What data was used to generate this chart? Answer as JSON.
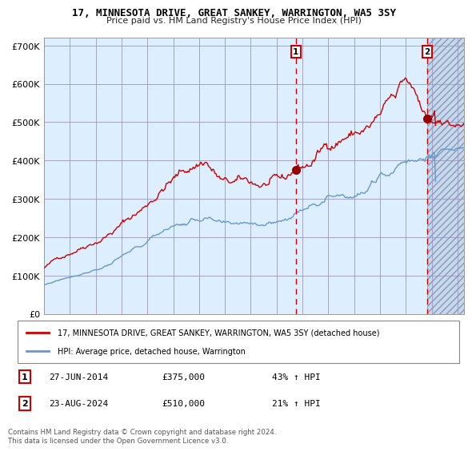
{
  "title": "17, MINNESOTA DRIVE, GREAT SANKEY, WARRINGTON, WA5 3SY",
  "subtitle": "Price paid vs. HM Land Registry's House Price Index (HPI)",
  "sale1_label": "27-JUN-2014",
  "sale1_price": 375000,
  "sale1_price_str": "£375,000",
  "sale1_hpi_pct": "43% ↑ HPI",
  "sale2_label": "23-AUG-2024",
  "sale2_price": 510000,
  "sale2_price_str": "£510,000",
  "sale2_hpi_pct": "21% ↑ HPI",
  "legend_line1": "17, MINNESOTA DRIVE, GREAT SANKEY, WARRINGTON, WA5 3SY (detached house)",
  "legend_line2": "HPI: Average price, detached house, Warrington",
  "footer": "Contains HM Land Registry data © Crown copyright and database right 2024.\nThis data is licensed under the Open Government Licence v3.0.",
  "red_color": "#cc0000",
  "blue_color": "#6699cc",
  "bg_color": "#ddeeff",
  "grid_color": "#9999bb",
  "xmin": 1995.0,
  "xmax": 2027.5,
  "ymin": 0,
  "ymax": 720000,
  "sale1_x": 2014.49,
  "sale2_x": 2024.65,
  "yticks": [
    0,
    100000,
    200000,
    300000,
    400000,
    500000,
    600000,
    700000
  ],
  "ylabels": [
    "£0",
    "£100K",
    "£200K",
    "£300K",
    "£400K",
    "£500K",
    "£600K",
    "£700K"
  ],
  "xticks": [
    1995,
    1997,
    1999,
    2001,
    2003,
    2005,
    2007,
    2009,
    2011,
    2013,
    2015,
    2017,
    2019,
    2021,
    2023,
    2025,
    2027
  ]
}
